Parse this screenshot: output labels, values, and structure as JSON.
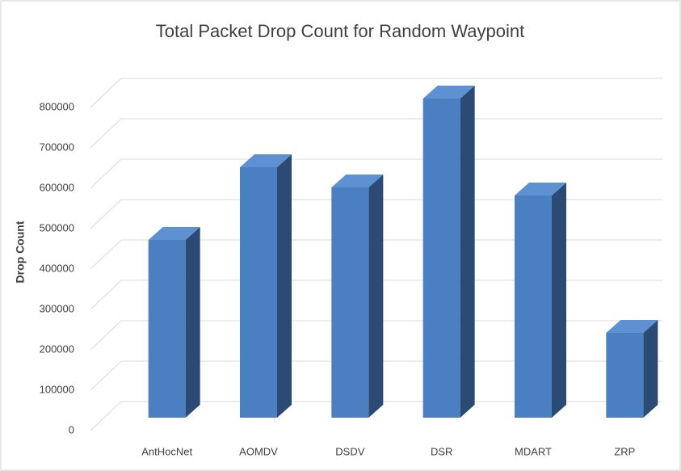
{
  "chart_data": {
    "type": "bar3d",
    "title": "Total Packet Drop Count for Random Waypoint",
    "y_label": "Drop Count",
    "categories": [
      "AntHocNet",
      "AOMDV",
      "DSDV",
      "DSR",
      "MDART",
      "ZRP"
    ],
    "values": [
      440000,
      620000,
      570000,
      790000,
      550000,
      210000
    ],
    "color": "#4a7fc1",
    "side_color": "#2b4b74",
    "top_color": "#5d91d2",
    "ylim": [
      0,
      800000
    ],
    "yticks": [
      0,
      100000,
      200000,
      300000,
      400000,
      500000,
      600000,
      700000,
      800000
    ],
    "grid": true
  }
}
